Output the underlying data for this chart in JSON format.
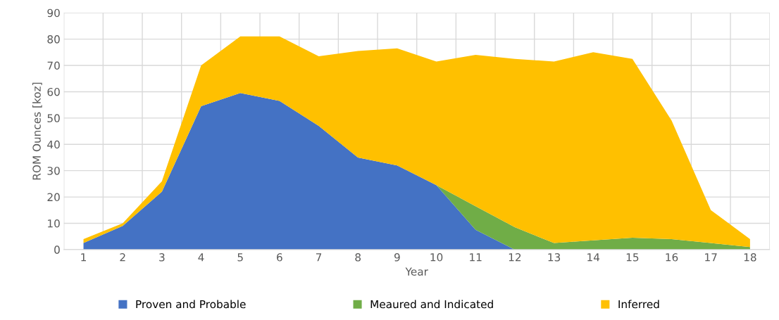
{
  "chart_data": {
    "type": "area",
    "stacked": true,
    "xlabel": "Year",
    "ylabel": "ROM Ounces [koz]",
    "categories": [
      "1",
      "2",
      "3",
      "4",
      "5",
      "6",
      "7",
      "8",
      "9",
      "10",
      "11",
      "12",
      "13",
      "14",
      "15",
      "16",
      "17",
      "18"
    ],
    "series": [
      {
        "name": "Proven and Probable",
        "color": "#4472c4",
        "values": [
          2.5,
          9,
          22,
          54.5,
          59.5,
          56.5,
          47,
          35,
          32,
          24.5,
          7.5,
          0,
          0,
          0,
          0,
          0,
          0,
          0
        ]
      },
      {
        "name": "Meaured and Indicated",
        "color": "#70ad47",
        "values": [
          null,
          null,
          null,
          null,
          null,
          null,
          null,
          null,
          null,
          0,
          9,
          8.5,
          2.5,
          3.5,
          4.5,
          4,
          2.5,
          1
        ]
      },
      {
        "name": "Inferred",
        "color": "#ffc000",
        "values": [
          1.5,
          1,
          4,
          15.5,
          21.5,
          24.5,
          26.5,
          40.5,
          44.5,
          47,
          57.5,
          64,
          69,
          71.5,
          68,
          45,
          12.5,
          3
        ]
      }
    ],
    "ylim": [
      0,
      90
    ],
    "yticks": [
      0,
      10,
      20,
      30,
      40,
      50,
      60,
      70,
      80,
      90
    ],
    "grid": true,
    "legend": "bottom"
  }
}
